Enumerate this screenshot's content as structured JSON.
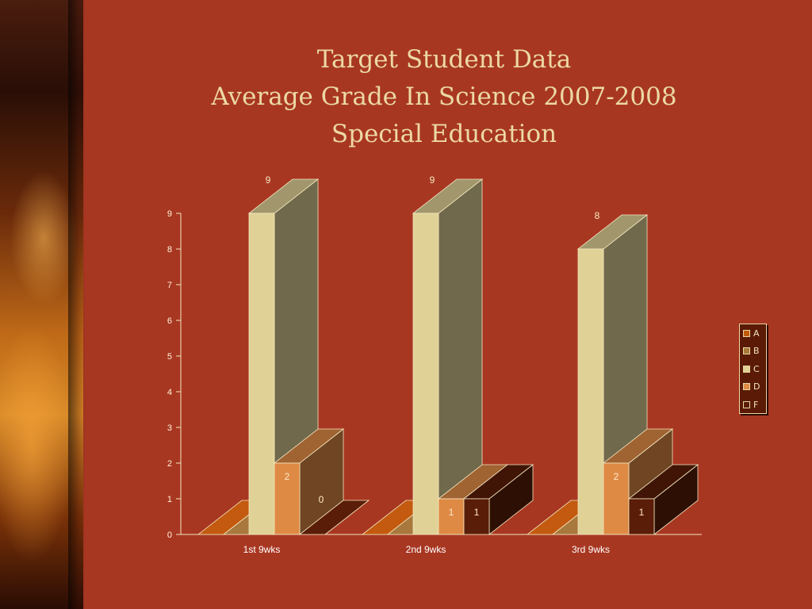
{
  "title_lines": [
    "Target Student Data",
    "Average Grade In Science 2007-2008",
    "Special Education"
  ],
  "chart_data": {
    "type": "bar",
    "categories": [
      "1st 9wks",
      "2nd 9wks",
      "3rd 9wks"
    ],
    "series": [
      {
        "name": "A",
        "values": [
          0,
          0,
          0
        ],
        "color": "#c35a0f",
        "label_color": "#ffe9c8"
      },
      {
        "name": "B",
        "values": [
          0,
          0,
          0
        ],
        "color": "#a8783c",
        "label_color": "#ffe9c8"
      },
      {
        "name": "C",
        "values": [
          9,
          9,
          8
        ],
        "color": "#e0d196",
        "label_color": "#2a1208"
      },
      {
        "name": "D",
        "values": [
          2,
          1,
          2
        ],
        "color": "#de8a45",
        "label_color": "#ffe9c8"
      },
      {
        "name": "F",
        "values": [
          0,
          1,
          1
        ],
        "color": "#5a1d08",
        "label_color": "#ffe9c8"
      }
    ],
    "data_labels": [
      {
        "series": 2,
        "category": 0,
        "text": "9"
      },
      {
        "series": 3,
        "category": 0,
        "text": "2"
      },
      {
        "series": 4,
        "category": 0,
        "text": "0"
      },
      {
        "series": 2,
        "category": 1,
        "text": "9"
      },
      {
        "series": 3,
        "category": 1,
        "text": "1"
      },
      {
        "series": 4,
        "category": 1,
        "text": "1"
      },
      {
        "series": 2,
        "category": 2,
        "text": "8"
      },
      {
        "series": 3,
        "category": 2,
        "text": "2"
      },
      {
        "series": 4,
        "category": 2,
        "text": "1"
      }
    ],
    "y_ticks": [
      0,
      1,
      2,
      3,
      4,
      5,
      6,
      7,
      8,
      9
    ],
    "ylim": [
      0,
      9
    ],
    "legend_position": "right",
    "grid": false,
    "three_d": true
  }
}
